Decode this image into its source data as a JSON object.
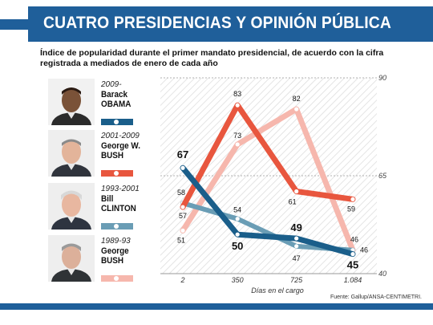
{
  "colors": {
    "header": "#1f5f9a",
    "obama": "#1a5e8a",
    "bushw": "#e8563e",
    "clinton": "#6a9db5",
    "bushsr": "#f6b7ad"
  },
  "header": {
    "title": "CUATRO PRESIDENCIAS Y OPINIÓN PÚBLICA"
  },
  "subtitle": "Índice de popularidad durante el primer mandato presidencial, de acuerdo con la cifra registrada a mediados de enero de cada año",
  "presidents": [
    {
      "years": "2009-",
      "first": "Barack",
      "last": "OBAMA",
      "color": "#1a5e8a"
    },
    {
      "years": "2001-2009",
      "first": "George W.",
      "last": "BUSH",
      "color": "#e8563e"
    },
    {
      "years": "1993-2001",
      "first": "Bill",
      "last": "CLINTON",
      "color": "#6a9db5"
    },
    {
      "years": "1989-93",
      "first": "George",
      "last": "BUSH",
      "color": "#f6b7ad"
    }
  ],
  "chart_data": {
    "type": "line",
    "x": [
      2,
      350,
      725,
      1084
    ],
    "x_tick_labels": [
      "2",
      "350",
      "725",
      "1.084"
    ],
    "xlabel": "Días en el cargo",
    "ylim": [
      40,
      90
    ],
    "y_ticks": [
      90,
      65,
      40
    ],
    "series": [
      {
        "name": "Barack OBAMA",
        "values": [
          67,
          50,
          49,
          45
        ],
        "labels": [
          "67",
          "50",
          "49",
          "45"
        ],
        "color": "#1a5e8a",
        "width": 7
      },
      {
        "name": "George W. BUSH",
        "values": [
          57,
          83,
          61,
          59
        ],
        "labels": [
          "57",
          "83",
          "61",
          "59"
        ],
        "color": "#e8563e",
        "width": 7
      },
      {
        "name": "Bill CLINTON",
        "values": [
          58,
          54,
          47,
          46
        ],
        "labels": [
          "58",
          "54",
          "47",
          "46"
        ],
        "color": "#6a9db5",
        "width": 6
      },
      {
        "name": "George BUSH",
        "values": [
          51,
          73,
          82,
          46
        ],
        "labels": [
          "51",
          "73",
          "82",
          "46"
        ],
        "color": "#f6b7ad",
        "width": 7
      }
    ],
    "source": "Fuente: Gallup/ANSA-CENTIMETRI."
  }
}
